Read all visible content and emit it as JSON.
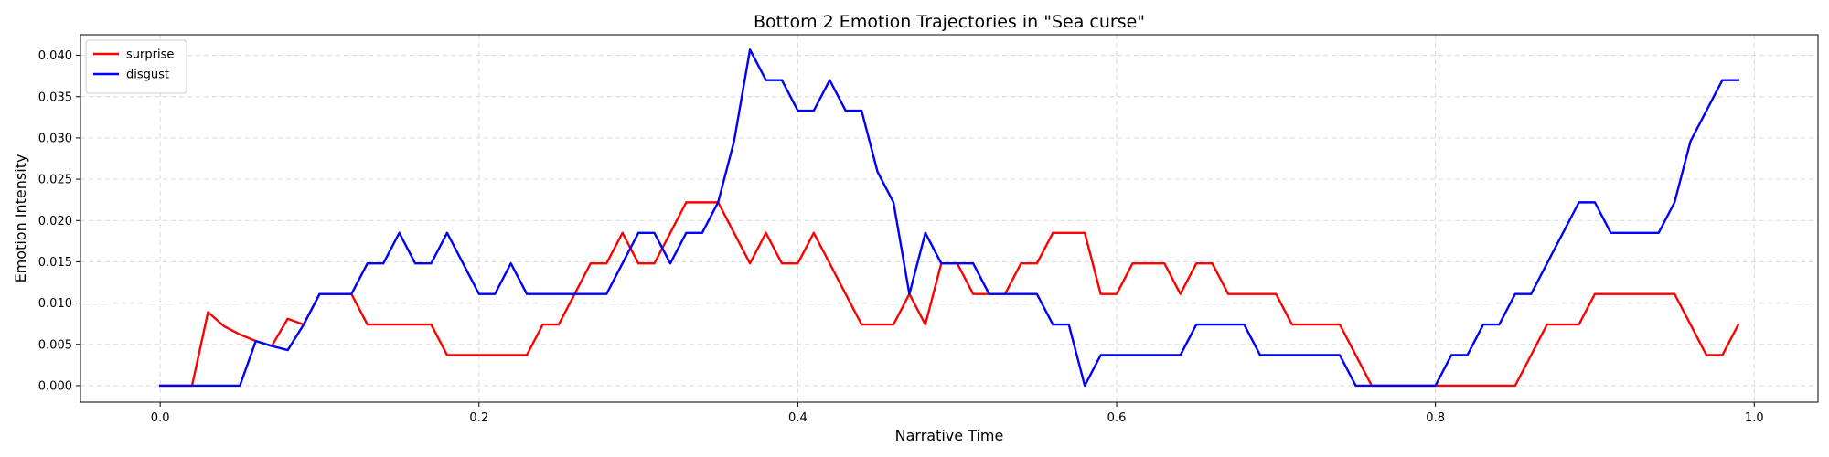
{
  "chart_data": {
    "type": "line",
    "title": "Bottom 2 Emotion Trajectories in \"Sea curse\"",
    "xlabel": "Narrative Time",
    "ylabel": "Emotion Intensity",
    "xlim": [
      -0.05,
      1.04
    ],
    "ylim": [
      -0.002,
      0.0425
    ],
    "xticks": [
      0.0,
      0.2,
      0.4,
      0.6,
      0.8,
      1.0
    ],
    "xtick_labels": [
      "0.0",
      "0.2",
      "0.4",
      "0.6",
      "0.8",
      "1.0"
    ],
    "yticks": [
      0.0,
      0.005,
      0.01,
      0.015,
      0.02,
      0.025,
      0.03,
      0.035,
      0.04
    ],
    "ytick_labels": [
      "0.000",
      "0.005",
      "0.010",
      "0.015",
      "0.020",
      "0.025",
      "0.030",
      "0.035",
      "0.040"
    ],
    "grid": true,
    "legend_position": "top-left",
    "x": [
      0.0,
      0.01,
      0.02,
      0.03,
      0.04,
      0.05,
      0.06,
      0.07,
      0.08,
      0.09,
      0.1,
      0.11,
      0.12,
      0.13,
      0.14,
      0.15,
      0.16,
      0.17,
      0.18,
      0.19,
      0.2,
      0.21,
      0.22,
      0.23,
      0.24,
      0.25,
      0.26,
      0.27,
      0.28,
      0.29,
      0.3,
      0.31,
      0.32,
      0.33,
      0.34,
      0.35,
      0.36,
      0.37,
      0.38,
      0.39,
      0.4,
      0.41,
      0.42,
      0.43,
      0.44,
      0.45,
      0.46,
      0.47,
      0.48,
      0.49,
      0.5,
      0.51,
      0.52,
      0.53,
      0.54,
      0.55,
      0.56,
      0.57,
      0.58,
      0.59,
      0.6,
      0.61,
      0.62,
      0.63,
      0.64,
      0.65,
      0.66,
      0.67,
      0.68,
      0.69,
      0.7,
      0.71,
      0.72,
      0.73,
      0.74,
      0.75,
      0.76,
      0.77,
      0.78,
      0.79,
      0.8,
      0.81,
      0.82,
      0.83,
      0.84,
      0.85,
      0.86,
      0.87,
      0.88,
      0.89,
      0.9,
      0.91,
      0.92,
      0.93,
      0.94,
      0.95,
      0.96,
      0.97,
      0.98,
      0.99
    ],
    "series": [
      {
        "name": "surprise",
        "color": "#ff0000",
        "values": [
          0.0,
          0.0,
          0.0,
          0.0089,
          0.0072,
          0.0062,
          0.0054,
          0.0048,
          0.0081,
          0.0074,
          0.0111,
          0.0111,
          0.0111,
          0.0074,
          0.0074,
          0.0074,
          0.0074,
          0.0074,
          0.0037,
          0.0037,
          0.0037,
          0.0037,
          0.0037,
          0.0037,
          0.0074,
          0.0074,
          0.0111,
          0.0148,
          0.0148,
          0.0185,
          0.0148,
          0.0148,
          0.0185,
          0.0222,
          0.0222,
          0.0222,
          0.0185,
          0.0148,
          0.0185,
          0.0148,
          0.0148,
          0.0185,
          0.0148,
          0.0111,
          0.0074,
          0.0074,
          0.0074,
          0.0111,
          0.0074,
          0.0148,
          0.0148,
          0.0111,
          0.0111,
          0.0111,
          0.0148,
          0.0148,
          0.0185,
          0.0185,
          0.0185,
          0.0111,
          0.0111,
          0.0148,
          0.0148,
          0.0148,
          0.0111,
          0.0148,
          0.0148,
          0.0111,
          0.0111,
          0.0111,
          0.0111,
          0.0074,
          0.0074,
          0.0074,
          0.0074,
          0.0037,
          0.0,
          0.0,
          0.0,
          0.0,
          0.0,
          0.0,
          0.0,
          0.0,
          0.0,
          0.0,
          0.0037,
          0.0074,
          0.0074,
          0.0074,
          0.0111,
          0.0111,
          0.0111,
          0.0111,
          0.0111,
          0.0111,
          0.0074,
          0.0037,
          0.0037,
          0.0074
        ]
      },
      {
        "name": "disgust",
        "color": "#0000ff",
        "values": [
          0.0,
          0.0,
          0.0,
          0.0,
          0.0,
          0.0,
          0.0054,
          0.0048,
          0.0043,
          0.0074,
          0.0111,
          0.0111,
          0.0111,
          0.0148,
          0.0148,
          0.0185,
          0.0148,
          0.0148,
          0.0185,
          0.0148,
          0.0111,
          0.0111,
          0.0148,
          0.0111,
          0.0111,
          0.0111,
          0.0111,
          0.0111,
          0.0111,
          0.0148,
          0.0185,
          0.0185,
          0.0148,
          0.0185,
          0.0185,
          0.0222,
          0.0296,
          0.0407,
          0.037,
          0.037,
          0.0333,
          0.0333,
          0.037,
          0.0333,
          0.0333,
          0.0259,
          0.0222,
          0.0111,
          0.0185,
          0.0148,
          0.0148,
          0.0148,
          0.0111,
          0.0111,
          0.0111,
          0.0111,
          0.0074,
          0.0074,
          0.0,
          0.0037,
          0.0037,
          0.0037,
          0.0037,
          0.0037,
          0.0037,
          0.0074,
          0.0074,
          0.0074,
          0.0074,
          0.0037,
          0.0037,
          0.0037,
          0.0037,
          0.0037,
          0.0037,
          0.0,
          0.0,
          0.0,
          0.0,
          0.0,
          0.0,
          0.0037,
          0.0037,
          0.0074,
          0.0074,
          0.0111,
          0.0111,
          0.0148,
          0.0185,
          0.0222,
          0.0222,
          0.0185,
          0.0185,
          0.0185,
          0.0185,
          0.0222,
          0.0296,
          0.0333,
          0.037,
          0.037
        ]
      }
    ]
  }
}
